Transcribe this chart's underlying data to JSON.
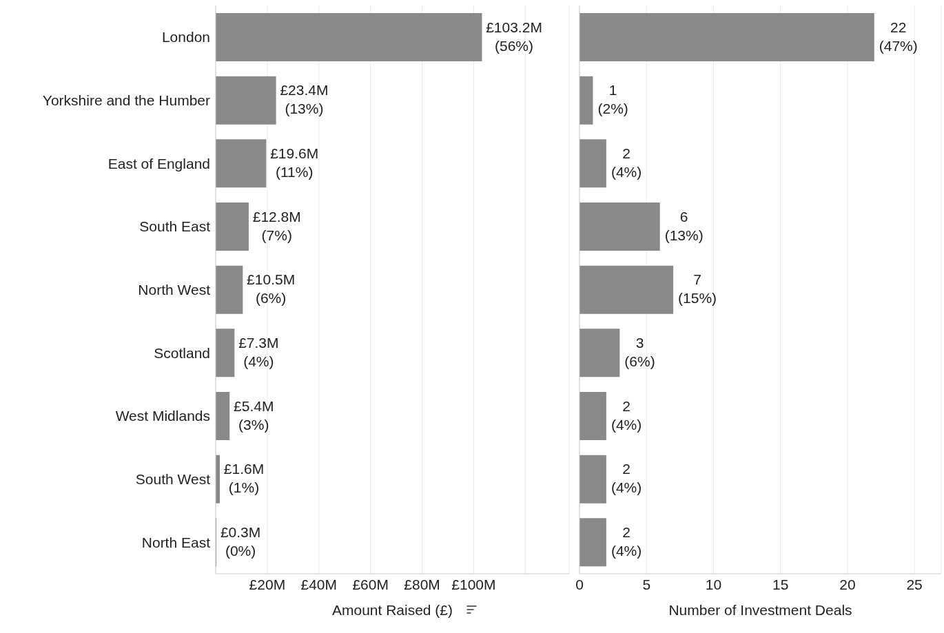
{
  "chart_data": [
    {
      "type": "bar",
      "orientation": "horizontal",
      "xlabel": "Amount Raised (£)",
      "categories": [
        "London",
        "Yorkshire and the Humber",
        "East of England",
        "South East",
        "North West",
        "Scotland",
        "West Midlands",
        "South West",
        "North East"
      ],
      "values": [
        103200000,
        23400000,
        19600000,
        12800000,
        10500000,
        7300000,
        5400000,
        1600000,
        300000
      ],
      "value_labels": [
        "£103.2M\n(56%)",
        "£23.4M\n(13%)",
        "£19.6M\n(11%)",
        "£12.8M\n(7%)",
        "£10.5M\n(6%)",
        "£7.3M\n(4%)",
        "£5.4M\n(3%)",
        "£1.6M\n(1%)",
        "£0.3M\n(0%)"
      ],
      "color": "#898989",
      "xlim": [
        0,
        137000000
      ],
      "xticks": [
        {
          "value": 20000000,
          "label": "£20M"
        },
        {
          "value": 40000000,
          "label": "£40M"
        },
        {
          "value": 60000000,
          "label": "£60M"
        },
        {
          "value": 80000000,
          "label": "£80M"
        },
        {
          "value": 100000000,
          "label": "£100M"
        },
        {
          "value": 120000000,
          "label": null
        }
      ],
      "grid": "x"
    },
    {
      "type": "bar",
      "orientation": "horizontal",
      "xlabel": "Number of Investment Deals",
      "categories": [
        null,
        null,
        null,
        null,
        null,
        null,
        null,
        null,
        null
      ],
      "values": [
        22,
        1,
        2,
        6,
        7,
        3,
        2,
        2,
        2
      ],
      "value_labels": [
        "22\n(47%)",
        "1\n(2%)",
        "2\n(4%)",
        "6\n(13%)",
        "7\n(15%)",
        "3\n(6%)",
        "2\n(4%)",
        "2\n(4%)",
        "2\n(4%)"
      ],
      "color": "#898989",
      "xlim": [
        0,
        27
      ],
      "xticks": [
        0,
        5,
        10,
        15,
        20,
        25
      ],
      "grid": "x",
      "tick_labels": "x"
    }
  ]
}
